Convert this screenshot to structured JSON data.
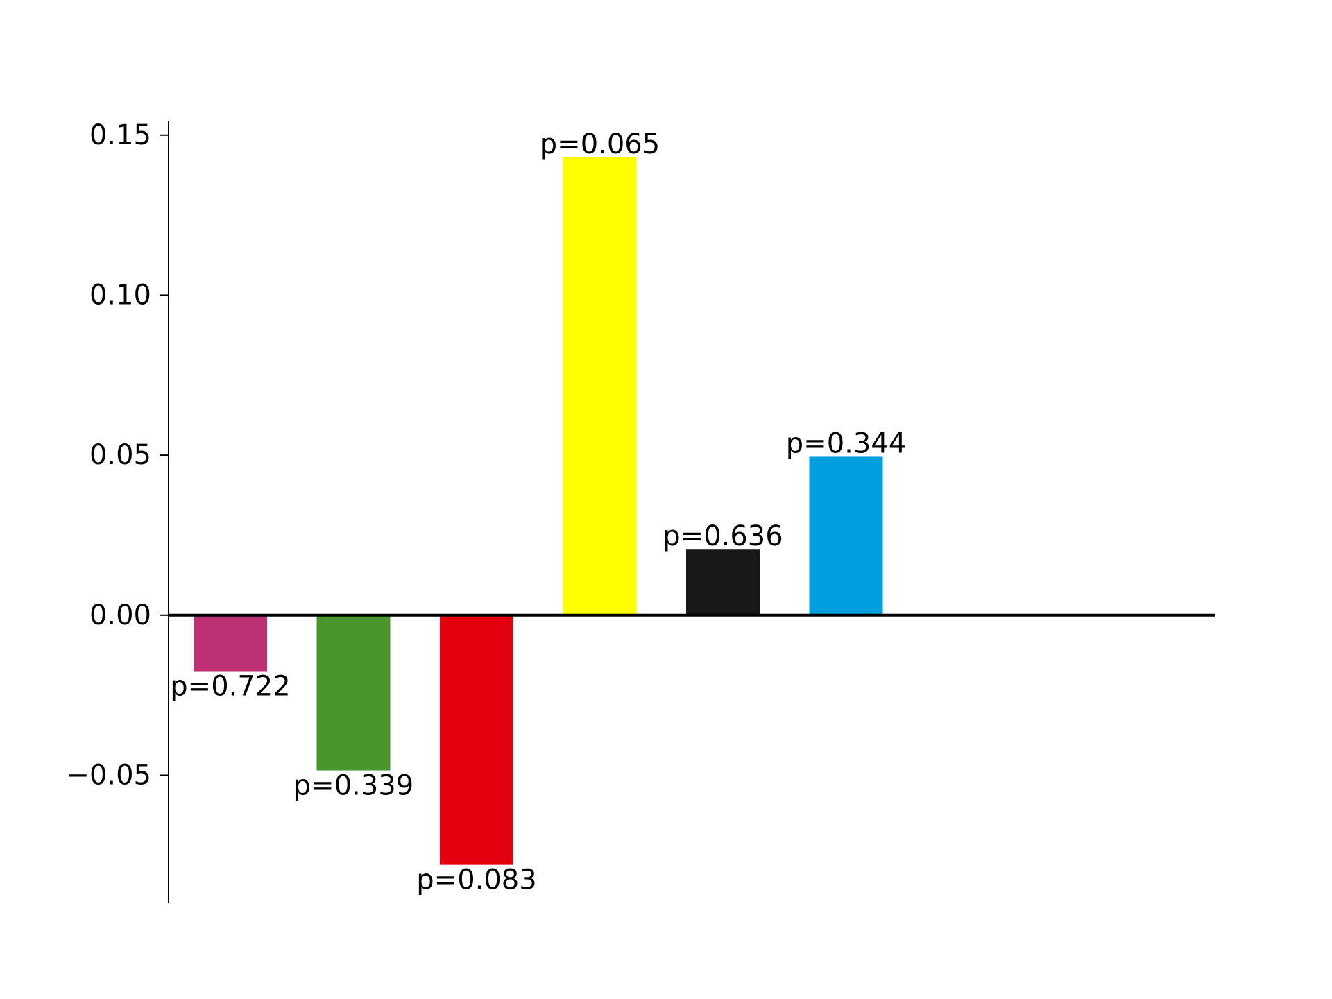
{
  "chart_data": {
    "type": "bar",
    "title": "",
    "xlabel": "",
    "ylabel": "",
    "categories": [
      "",
      "",
      "",
      "",
      "",
      ""
    ],
    "values": [
      -0.0175,
      -0.0485,
      -0.078,
      0.143,
      0.0205,
      0.0495
    ],
    "colors": [
      "#BC3173",
      "#48962C",
      "#E3000F",
      "#FFFF00",
      "#18181B",
      "#009FE0"
    ],
    "data_labels": [
      "p=0.722",
      "p=0.339",
      "p=0.083",
      "p=0.065",
      "p=0.636",
      "p=0.344"
    ],
    "ylim": [
      -0.09,
      0.1545
    ],
    "yticks": [
      -0.05,
      0.0,
      0.05,
      0.1,
      0.15
    ],
    "ytick_labels": [
      "−0.05",
      "0.00",
      "0.05",
      "0.10",
      "0.15"
    ],
    "grid": false,
    "legend": "none"
  }
}
